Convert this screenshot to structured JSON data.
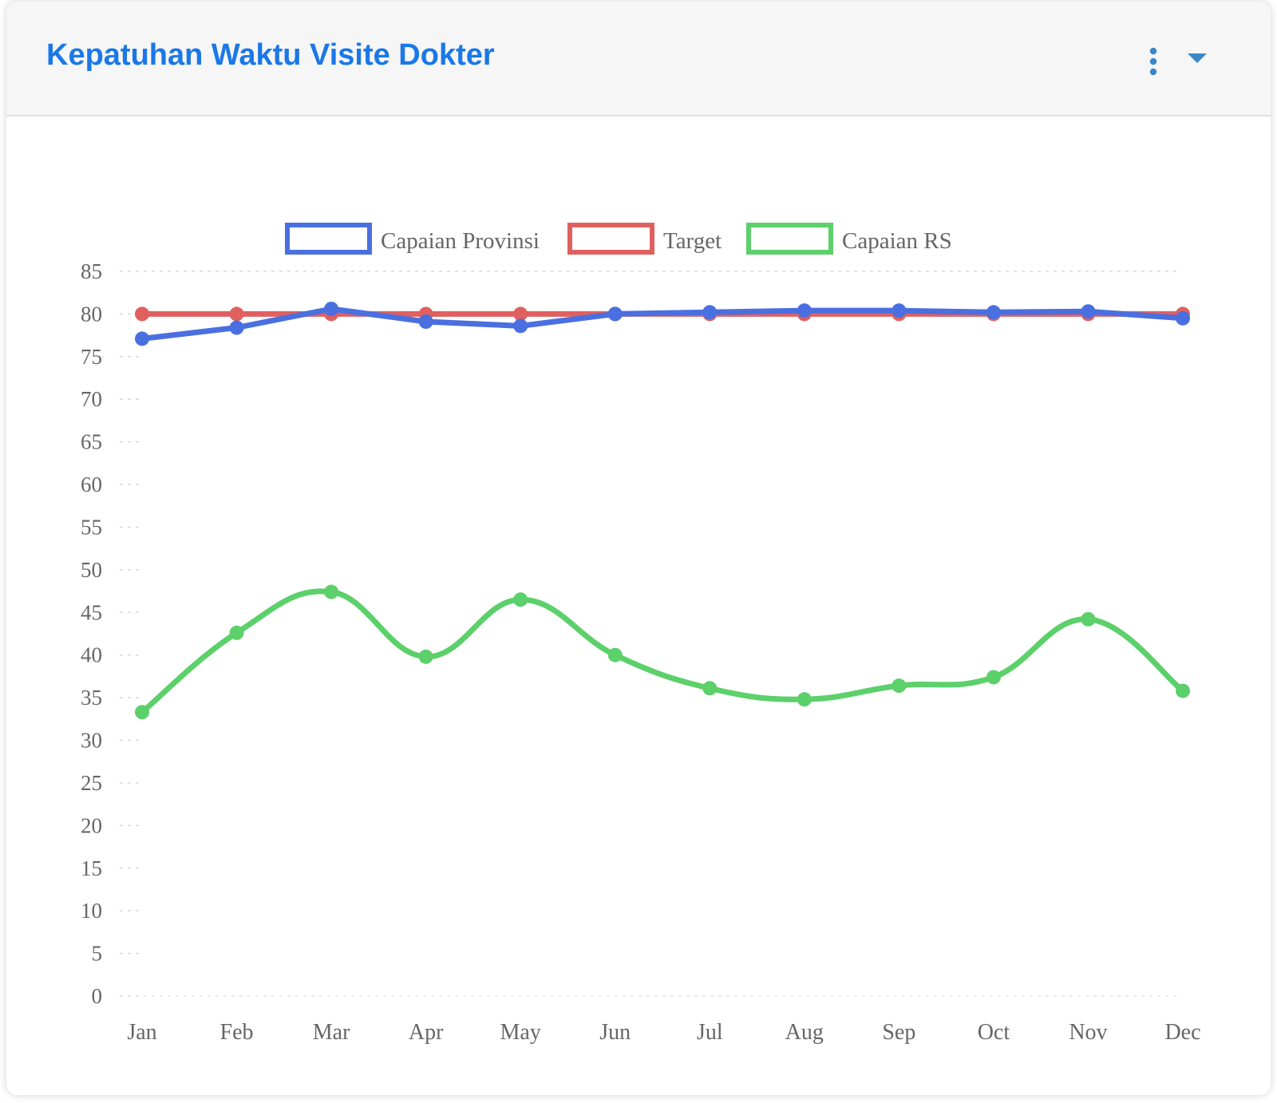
{
  "header": {
    "title": "Kepatuhan Waktu Visite Dokter",
    "menu_icon": "more-vertical-icon",
    "collapse_icon": "caret-down-icon"
  },
  "colors": {
    "title": "#1a78e8",
    "icons": "#3a87c8",
    "capaian_provinsi": "#4a6fe0",
    "target": "#e06060",
    "capaian_rs": "#5cd06a"
  },
  "chart_data": {
    "type": "line",
    "title": "",
    "xlabel": "",
    "ylabel": "",
    "categories": [
      "Jan",
      "Feb",
      "Mar",
      "Apr",
      "May",
      "Jun",
      "Jul",
      "Aug",
      "Sep",
      "Oct",
      "Nov",
      "Dec"
    ],
    "yticks": [
      "0",
      "5",
      "10",
      "15",
      "20",
      "25",
      "30",
      "35",
      "40",
      "45",
      "50",
      "55",
      "60",
      "65",
      "70",
      "75",
      "80",
      "85"
    ],
    "ylim": [
      0,
      85
    ],
    "grid": true,
    "legend_position": "top",
    "series": [
      {
        "name": "Capaian Provinsi",
        "color": "#4a6fe0",
        "curve": "straight",
        "values": [
          77.1,
          78.4,
          80.6,
          79.1,
          78.6,
          80.0,
          80.2,
          80.4,
          80.4,
          80.2,
          80.3,
          79.5
        ]
      },
      {
        "name": "Target",
        "color": "#e06060",
        "curve": "straight",
        "values": [
          80,
          80,
          80,
          80,
          80,
          80,
          80,
          80,
          80,
          80,
          80,
          80
        ]
      },
      {
        "name": "Capaian RS",
        "color": "#5cd06a",
        "curve": "smooth",
        "values": [
          33.3,
          42.6,
          47.4,
          39.8,
          46.5,
          40.0,
          36.1,
          34.8,
          36.4,
          37.4,
          44.2,
          35.8
        ]
      }
    ]
  }
}
